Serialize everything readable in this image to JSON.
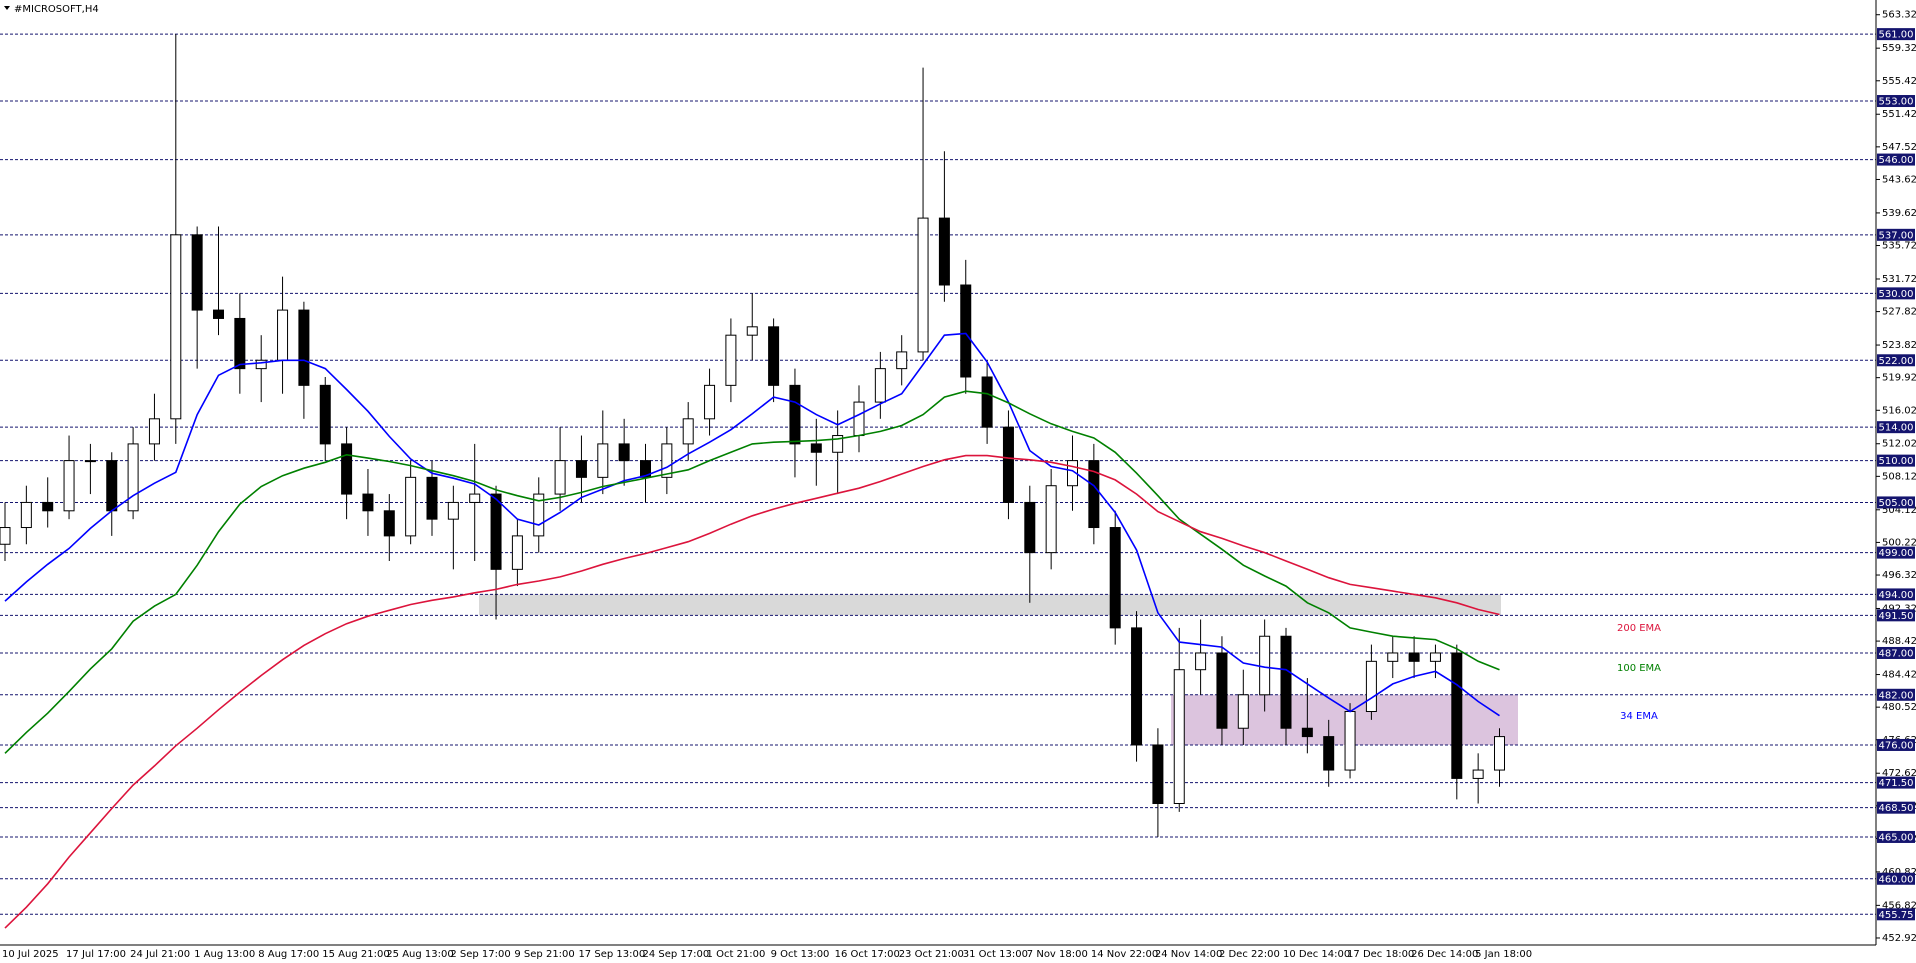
{
  "chart_data": {
    "type": "candlestick",
    "title": "#MICROSOFT,H4",
    "categories": [
      "10 Jul 2025",
      null,
      null,
      "17 Jul 17:00",
      null,
      null,
      "24 Jul 21:00",
      null,
      null,
      "1 Aug 13:00",
      null,
      null,
      "8 Aug 17:00",
      null,
      null,
      "15 Aug 21:00",
      null,
      null,
      "25 Aug 13:00",
      null,
      null,
      "2 Sep 17:00",
      null,
      null,
      "9 Sep 21:00",
      null,
      null,
      "17 Sep 13:00",
      null,
      null,
      "24 Sep 17:00",
      null,
      null,
      "1 Oct 21:00",
      null,
      null,
      "9 Oct 13:00",
      null,
      null,
      "16 Oct 17:00",
      null,
      null,
      "23 Oct 21:00",
      null,
      null,
      "31 Oct 13:00",
      null,
      null,
      "7 Nov 18:00",
      null,
      null,
      "14 Nov 22:00",
      null,
      null,
      "24 Nov 14:00",
      null,
      null,
      "2 Dec 22:00",
      null,
      null,
      "10 Dec 14:00",
      null,
      null,
      "17 Dec 18:00",
      null,
      null,
      "26 Dec 14:00",
      null,
      null,
      "5 Jan 18:00",
      null
    ],
    "candles": {
      "open": [
        500,
        502,
        505,
        504,
        510,
        510,
        504,
        512,
        515,
        537,
        528,
        527,
        521,
        522,
        528,
        519,
        512,
        506,
        504,
        501,
        508,
        503,
        505,
        506,
        497,
        501,
        506,
        510,
        508,
        512,
        510,
        508,
        512,
        515,
        519,
        525,
        526,
        519,
        512,
        511,
        513,
        517,
        521,
        523,
        539,
        531,
        520,
        514,
        505,
        499,
        507,
        510,
        502,
        490,
        476,
        469,
        485,
        487,
        478,
        482,
        489,
        478,
        477,
        473,
        480,
        486,
        487,
        486,
        487,
        472,
        473
      ],
      "high": [
        505,
        507,
        508,
        513,
        512,
        511,
        514,
        518,
        561,
        538,
        538,
        530,
        525,
        532,
        529,
        520,
        514,
        509,
        506,
        510,
        510,
        507,
        512,
        507,
        503,
        508,
        514,
        513,
        516,
        515,
        512,
        514,
        517,
        521,
        527,
        530,
        527,
        521,
        515,
        516,
        519,
        523,
        525,
        557,
        547,
        534,
        522,
        516,
        507,
        509,
        513,
        512,
        504,
        492,
        478,
        490,
        491,
        489,
        485,
        491,
        490,
        484,
        479,
        481,
        488,
        489,
        489,
        488,
        488,
        475,
        478
      ],
      "low": [
        498,
        500,
        502,
        503,
        506,
        501,
        503,
        510,
        512,
        521,
        525,
        518,
        517,
        518,
        515,
        510,
        503,
        501,
        498,
        500,
        501,
        497,
        498,
        491,
        495,
        499,
        504,
        505,
        506,
        507,
        505,
        506,
        510,
        513,
        517,
        522,
        517,
        508,
        507,
        506,
        511,
        515,
        519,
        522,
        529,
        518,
        512,
        503,
        493,
        497,
        504,
        500,
        488,
        474,
        465,
        468,
        482,
        476,
        476,
        480,
        476,
        475,
        471,
        472,
        479,
        484,
        484,
        484,
        469.5,
        469,
        471
      ],
      "close": [
        502,
        505,
        504,
        510,
        510,
        504,
        512,
        515,
        537,
        528,
        527,
        521,
        522,
        528,
        519,
        512,
        506,
        504,
        501,
        508,
        503,
        505,
        506,
        497,
        501,
        506,
        510,
        508,
        512,
        510,
        508,
        512,
        515,
        519,
        525,
        526,
        519,
        512,
        511,
        513,
        517,
        521,
        523,
        539,
        531,
        520,
        514,
        505,
        499,
        507,
        510,
        502,
        490,
        476,
        469,
        485,
        487,
        478,
        482,
        489,
        478,
        477,
        473,
        480,
        486,
        487,
        486,
        487,
        472,
        473,
        477
      ],
      "up_color": "#ffffff",
      "down_color": "#000000"
    },
    "series": [
      {
        "name": "34 EMA",
        "color": "#0000ff",
        "values": [
          493.2,
          495.5,
          497.6,
          499.5,
          501.9,
          504.0,
          505.8,
          507.3,
          508.6,
          515.5,
          520.2,
          521.5,
          521.7,
          522.0,
          522.0,
          521.0,
          518.5,
          515.9,
          512.9,
          510.2,
          508.5,
          507.9,
          507.2,
          505.4,
          503.0,
          502.3,
          503.8,
          505.6,
          506.6,
          507.6,
          508.2,
          509.2,
          510.8,
          512.2,
          513.7,
          515.6,
          517.6,
          517.0,
          515.5,
          514.3,
          515.5,
          516.8,
          518.0,
          521.5,
          525.0,
          525.2,
          521.8,
          517.0,
          511.2,
          509.3,
          508.8,
          507.0,
          503.8,
          499.3,
          491.8,
          488.3,
          488.0,
          487.7,
          485.8,
          485.3,
          485.0,
          483.3,
          481.6,
          480.0,
          481.6,
          483.3,
          484.2,
          484.8,
          483.2,
          481.2,
          479.5
        ]
      },
      {
        "name": "100 EMA",
        "color": "#008000",
        "values": [
          475.0,
          477.5,
          479.8,
          482.4,
          485.1,
          487.5,
          490.8,
          492.6,
          494.0,
          497.5,
          501.5,
          504.8,
          506.9,
          508.2,
          509.1,
          509.8,
          510.7,
          510.3,
          509.9,
          509.4,
          508.8,
          508.2,
          507.5,
          506.5,
          505.8,
          505.2,
          505.6,
          506.2,
          506.9,
          507.4,
          507.9,
          508.4,
          508.9,
          510.0,
          511.0,
          512.0,
          512.2,
          512.3,
          512.4,
          512.6,
          513.0,
          513.5,
          514.2,
          515.5,
          517.6,
          518.3,
          518.0,
          516.9,
          515.6,
          514.4,
          513.5,
          512.7,
          511.0,
          508.5,
          505.8,
          503.0,
          501.2,
          499.4,
          497.5,
          496.2,
          495.0,
          493.0,
          491.8,
          490.0,
          489.5,
          489.0,
          488.8,
          488.6,
          487.5,
          486.0,
          485.0
        ]
      },
      {
        "name": "200 EMA",
        "color": "#dc143c",
        "values": [
          454.1,
          456.6,
          459.4,
          462.6,
          465.5,
          468.4,
          471.2,
          473.5,
          475.9,
          478.0,
          480.2,
          482.3,
          484.3,
          486.2,
          487.9,
          489.3,
          490.5,
          491.4,
          492.1,
          492.8,
          493.3,
          493.7,
          494.2,
          494.6,
          495.2,
          495.6,
          496.1,
          496.8,
          497.6,
          498.3,
          498.9,
          499.6,
          500.3,
          501.3,
          502.4,
          503.4,
          504.2,
          504.9,
          505.5,
          506.1,
          506.7,
          507.5,
          508.4,
          509.3,
          510.1,
          510.6,
          510.6,
          510.3,
          510.1,
          509.8,
          509.3,
          508.7,
          507.7,
          506.0,
          503.9,
          502.7,
          501.5,
          500.7,
          499.8,
          499.0,
          498.0,
          497.0,
          496.0,
          495.2,
          494.8,
          494.4,
          494.0,
          493.6,
          493.0,
          492.2,
          491.6
        ]
      }
    ],
    "ylim": [
      452.08,
      565.08
    ],
    "yticks": [
      563.32,
      559.32,
      555.42,
      551.42,
      547.52,
      543.62,
      539.62,
      535.72,
      531.72,
      527.82,
      523.82,
      519.92,
      516.02,
      512.02,
      508.12,
      504.12,
      500.22,
      496.32,
      492.32,
      488.42,
      484.42,
      480.52,
      476.62,
      472.62,
      468.72,
      464.82,
      460.82,
      456.82,
      452.92
    ],
    "levels": [
      {
        "value": 561,
        "label": "561.00"
      },
      {
        "value": 553,
        "label": "553.00"
      },
      {
        "value": 546,
        "label": "546.00"
      },
      {
        "value": 537,
        "label": "537.00"
      },
      {
        "value": 530,
        "label": "530.00"
      },
      {
        "value": 522,
        "label": "522.00"
      },
      {
        "value": 514,
        "label": "514.00"
      },
      {
        "value": 510,
        "label": "510.00"
      },
      {
        "value": 505,
        "label": "505.00"
      },
      {
        "value": 499,
        "label": "499.00"
      },
      {
        "value": 494,
        "label": "494.00"
      },
      {
        "value": 491.5,
        "label": "491.50"
      },
      {
        "value": 487,
        "label": "487.00"
      },
      {
        "value": 482,
        "label": "482.00"
      },
      {
        "value": 476,
        "label": "476.00"
      },
      {
        "value": 471.5,
        "label": "471.50"
      },
      {
        "value": 468.5,
        "label": "468.50"
      },
      {
        "value": 465,
        "label": "465.00"
      },
      {
        "value": 460,
        "label": "460.00"
      },
      {
        "value": 455.75,
        "label": "455.75"
      }
    ],
    "level_color": "#14146e",
    "zones": [
      {
        "from": 494,
        "to": 491.5,
        "color": "#d9d9d9"
      },
      {
        "from": 482,
        "to": 476,
        "color": "#dcc4de"
      }
    ]
  }
}
